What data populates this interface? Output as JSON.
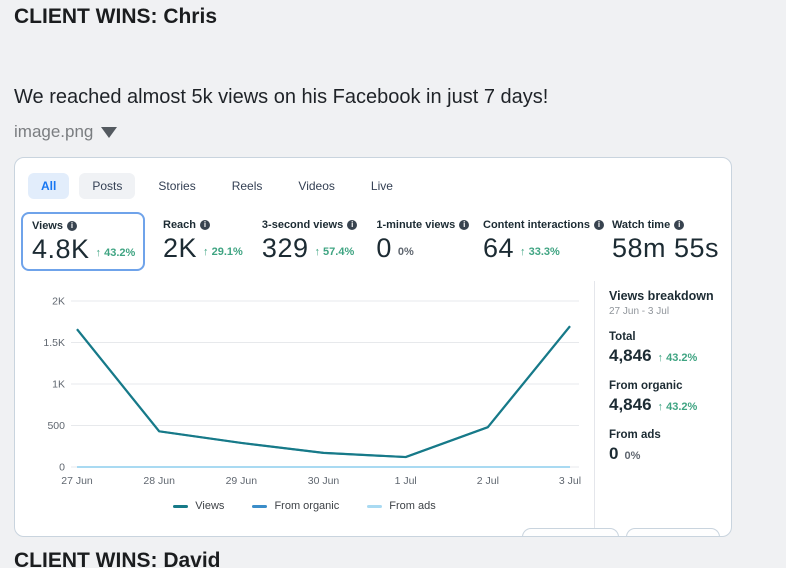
{
  "post": {
    "title": "CLIENT WINS: Chris",
    "body": "We reached almost 5k views on his Facebook in just 7 days!",
    "attachment": {
      "filename": "image.png"
    }
  },
  "insights": {
    "tabs": [
      {
        "label": "All",
        "active": true,
        "style": "blue-pill"
      },
      {
        "label": "Posts",
        "active": false,
        "style": "gray-pill"
      },
      {
        "label": "Stories",
        "active": false,
        "style": "plain"
      },
      {
        "label": "Reels",
        "active": false,
        "style": "plain"
      },
      {
        "label": "Videos",
        "active": false,
        "style": "plain"
      },
      {
        "label": "Live",
        "active": false,
        "style": "plain"
      }
    ],
    "metrics": [
      {
        "label": "Views",
        "value": "4.8K",
        "delta": "43.2%",
        "direction": "up",
        "selected": true
      },
      {
        "label": "Reach",
        "value": "2K",
        "delta": "29.1%",
        "direction": "up",
        "selected": false
      },
      {
        "label": "3-second views",
        "value": "329",
        "delta": "57.4%",
        "direction": "up",
        "selected": false
      },
      {
        "label": "1-minute views",
        "value": "0",
        "delta": "0%",
        "direction": "flat",
        "selected": false
      },
      {
        "label": "Content interactions",
        "value": "64",
        "delta": "33.3%",
        "direction": "up",
        "selected": false
      },
      {
        "label": "Watch time",
        "value": "58m 55s",
        "delta": null,
        "direction": "none",
        "selected": false
      }
    ],
    "breakdown": {
      "title": "Views breakdown",
      "date_range": "27 Jun - 3 Jul",
      "rows": [
        {
          "label": "Total",
          "value": "4,846",
          "delta": "43.2%",
          "direction": "up"
        },
        {
          "label": "From organic",
          "value": "4,846",
          "delta": "43.2%",
          "direction": "up"
        },
        {
          "label": "From ads",
          "value": "0",
          "delta": "0%",
          "direction": "flat"
        }
      ]
    }
  },
  "chart_data": {
    "type": "line",
    "x": [
      "27 Jun",
      "28 Jun",
      "29 Jun",
      "30 Jun",
      "1 Jul",
      "2 Jul",
      "3 Jul"
    ],
    "series": [
      {
        "name": "Views",
        "color": "#177a88",
        "values": [
          1660,
          430,
          290,
          170,
          120,
          480,
          1696
        ]
      },
      {
        "name": "From organic",
        "color": "#3b8dc9",
        "values": [
          1660,
          430,
          290,
          170,
          120,
          480,
          1696
        ]
      },
      {
        "name": "From ads",
        "color": "#a9daf2",
        "values": [
          0,
          0,
          0,
          0,
          0,
          0,
          0
        ]
      }
    ],
    "y_ticks": [
      {
        "label": "0",
        "value": 0
      },
      {
        "label": "500",
        "value": 500
      },
      {
        "label": "1K",
        "value": 1000
      },
      {
        "label": "1.5K",
        "value": 1500
      },
      {
        "label": "2K",
        "value": 2000
      }
    ],
    "ylim": [
      0,
      2000
    ],
    "grid": true,
    "legend_position": "bottom"
  },
  "next_post": {
    "title": "CLIENT WINS: David"
  },
  "colors": {
    "accent_blue": "#1877f2",
    "positive_green": "#3fa482",
    "muted_gray": "#606770",
    "selected_border": "#6fa3ea"
  }
}
